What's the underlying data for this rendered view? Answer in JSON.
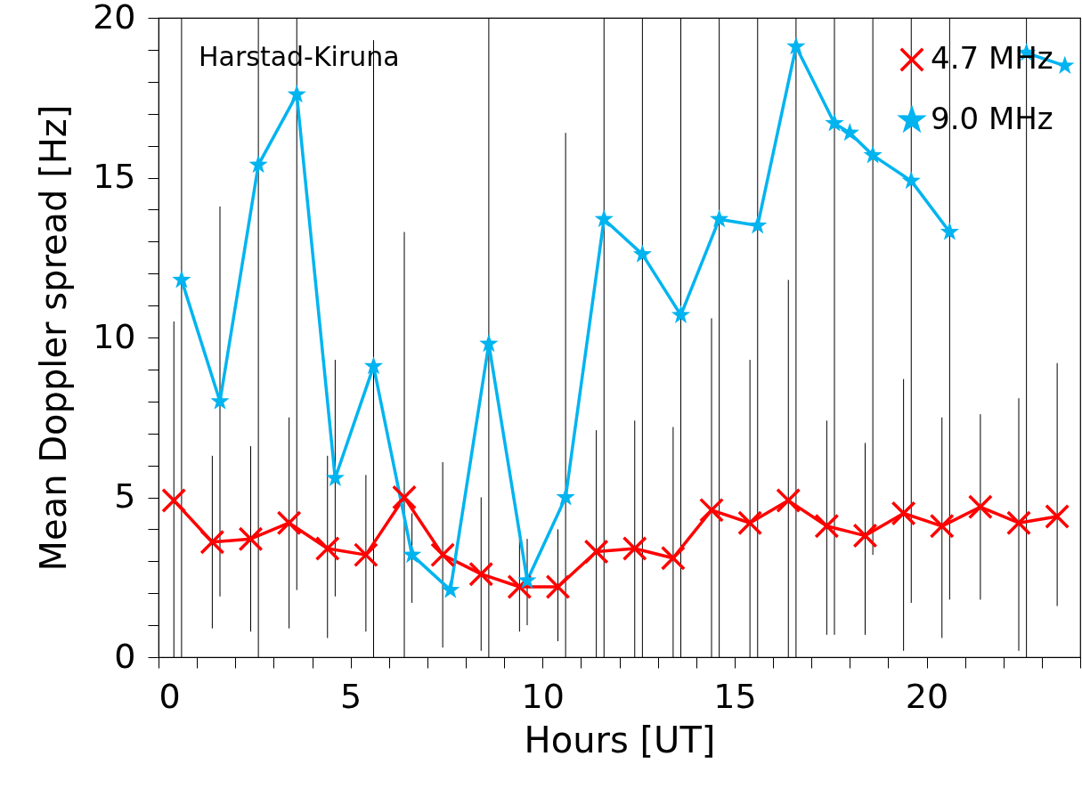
{
  "chart_data": {
    "type": "line",
    "xlabel": "Hours [UT]",
    "ylabel": "Mean Doppler spread [Hz]",
    "annotations": [
      "Harstad-Kiruna"
    ],
    "xlim": [
      0,
      24
    ],
    "ylim": [
      0,
      20
    ],
    "xticks": [
      0,
      {
        "value": 1,
        "label": null
      },
      {
        "value": 2,
        "label": null
      },
      {
        "value": 3,
        "label": null
      },
      {
        "value": 4,
        "label": null
      },
      5,
      {
        "value": 6,
        "label": null
      },
      {
        "value": 7,
        "label": null
      },
      {
        "value": 8,
        "label": null
      },
      {
        "value": 9,
        "label": null
      },
      10,
      {
        "value": 11,
        "label": null
      },
      {
        "value": 12,
        "label": null
      },
      {
        "value": 13,
        "label": null
      },
      {
        "value": 14,
        "label": null
      },
      15,
      {
        "value": 16,
        "label": null
      },
      {
        "value": 17,
        "label": null
      },
      {
        "value": 18,
        "label": null
      },
      {
        "value": 19,
        "label": null
      },
      20,
      {
        "value": 21,
        "label": null
      },
      {
        "value": 22,
        "label": null
      },
      {
        "value": 23,
        "label": null
      },
      {
        "value": 24,
        "label": null
      }
    ],
    "yticks": [
      0,
      {
        "value": 1,
        "label": null
      },
      {
        "value": 2,
        "label": null
      },
      {
        "value": 3,
        "label": null
      },
      {
        "value": 4,
        "label": null
      },
      5,
      {
        "value": 6,
        "label": null
      },
      {
        "value": 7,
        "label": null
      },
      {
        "value": 8,
        "label": null
      },
      {
        "value": 9,
        "label": null
      },
      10,
      {
        "value": 11,
        "label": null
      },
      {
        "value": 12,
        "label": null
      },
      {
        "value": 13,
        "label": null
      },
      {
        "value": 14,
        "label": null
      },
      15,
      {
        "value": 16,
        "label": null
      },
      {
        "value": 17,
        "label": null
      },
      {
        "value": 18,
        "label": null
      },
      {
        "value": 19,
        "label": null
      },
      20
    ],
    "grid": false,
    "legend": "top right",
    "line_style": "solid",
    "series": [
      {
        "name": "4.7 MHz",
        "color": "#ff0000",
        "marker": "cross",
        "x": [
          0.4,
          1.4,
          2.4,
          3.4,
          4.4,
          5.4,
          6.4,
          7.4,
          8.4,
          9.4,
          10.4,
          11.4,
          12.4,
          13.4,
          14.4,
          15.4,
          16.4,
          17.4,
          18.4,
          19.4,
          20.4,
          21.4,
          22.4,
          23.4
        ],
        "values": [
          4.9,
          3.6,
          3.7,
          4.2,
          3.4,
          3.2,
          5.0,
          3.2,
          2.6,
          2.2,
          2.2,
          3.3,
          3.4,
          3.1,
          4.6,
          4.2,
          4.9,
          4.1,
          3.8,
          4.5,
          4.1,
          4.7,
          4.2,
          4.4
        ],
        "errors": [
          [
            0,
            10.5
          ],
          [
            0.9,
            6.3
          ],
          [
            0.8,
            6.6
          ],
          [
            0.9,
            7.5
          ],
          [
            0.6,
            6.3
          ],
          [
            0.8,
            5.7
          ],
          [
            0,
            13.3
          ],
          [
            0.3,
            6.1
          ],
          [
            0.2,
            5.0
          ],
          [
            0.8,
            3.7
          ],
          [
            0.5,
            4.0
          ],
          [
            0,
            7.1
          ],
          [
            0,
            7.4
          ],
          [
            0,
            7.2
          ],
          [
            0,
            10.6
          ],
          [
            0,
            9.3
          ],
          [
            0,
            11.8
          ],
          [
            0.7,
            7.4
          ],
          [
            0.7,
            6.7
          ],
          [
            0.2,
            8.7
          ],
          [
            0.6,
            7.5
          ],
          [
            1.8,
            7.6
          ],
          [
            0.2,
            8.1
          ],
          [
            1.6,
            9.2
          ]
        ]
      },
      {
        "name": "9.0 MHz",
        "color": "#00b4f0",
        "marker": "star",
        "x": [
          0.6,
          1.6,
          2.6,
          3.6,
          4.6,
          5.6,
          6.6,
          7.6,
          8.6,
          9.6,
          10.6,
          11.6,
          12.6,
          13.6,
          14.6,
          15.6,
          16.6,
          17.6,
          18.0,
          18.6,
          19.6,
          20.6,
          21.5,
          22.6,
          23.6
        ],
        "values": [
          11.8,
          8.0,
          15.4,
          17.6,
          5.6,
          9.1,
          3.2,
          2.1,
          9.8,
          2.4,
          5.0,
          13.7,
          12.6,
          10.7,
          13.7,
          13.5,
          19.1,
          16.7,
          16.4,
          15.7,
          14.9,
          13.3,
          null,
          18.9,
          18.5
        ],
        "errors": [
          [
            0,
            20
          ],
          [
            1.9,
            14.1
          ],
          [
            0,
            20
          ],
          [
            2.1,
            20
          ],
          [
            1.9,
            9.3
          ],
          [
            0,
            19.3
          ],
          [
            1.7,
            4.5
          ],
          null,
          [
            0,
            20
          ],
          [
            1.0,
            3.7
          ],
          [
            0,
            16.4
          ],
          [
            0,
            20
          ],
          [
            0,
            20
          ],
          [
            0,
            20
          ],
          [
            0,
            20
          ],
          [
            0,
            20
          ],
          [
            0,
            20
          ],
          [
            0.7,
            20
          ],
          null,
          [
            3.2,
            20
          ],
          [
            1.7,
            20
          ],
          [
            1.8,
            20
          ],
          null,
          [
            0,
            20
          ],
          null
        ]
      }
    ]
  }
}
